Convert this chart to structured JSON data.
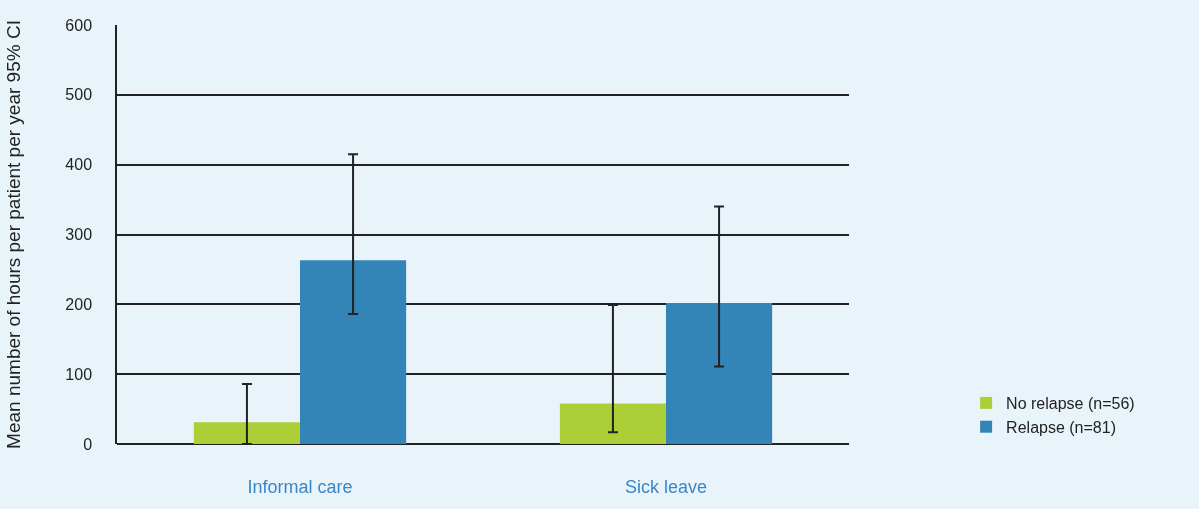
{
  "chart_data": {
    "type": "bar",
    "ylabel": "Mean number of hours per patient per year 95% CI",
    "categories": [
      "Informal care",
      "Sick leave"
    ],
    "series": [
      {
        "name": "No relapse (n=56)",
        "color": "#acce37",
        "values": [
          31,
          58
        ],
        "errors": [
          [
            0,
            86
          ],
          [
            17,
            199
          ]
        ]
      },
      {
        "name": "Relapse (n=81)",
        "color": "#3385b8",
        "values": [
          263,
          202
        ],
        "errors": [
          [
            186,
            415
          ],
          [
            111,
            340
          ]
        ]
      }
    ],
    "ylim": [
      0,
      600
    ],
    "yticks": [
      0,
      100,
      200,
      300,
      400,
      500,
      600
    ],
    "grid": "y",
    "legend": "bottom right"
  }
}
